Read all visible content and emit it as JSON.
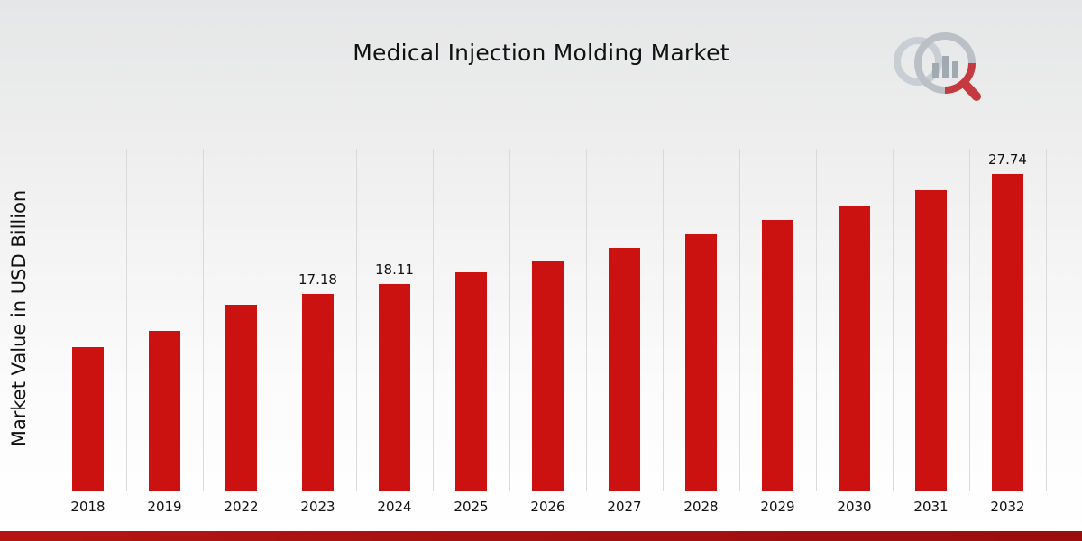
{
  "chart_data": {
    "type": "bar",
    "title": "Medical Injection Molding Market",
    "xlabel": "",
    "ylabel": "Market Value in USD Billion",
    "categories": [
      "2018",
      "2019",
      "2022",
      "2023",
      "2024",
      "2025",
      "2026",
      "2027",
      "2028",
      "2029",
      "2030",
      "2031",
      "2032"
    ],
    "values": [
      12.55,
      13.95,
      16.3,
      17.18,
      18.11,
      19.1,
      20.15,
      21.25,
      22.4,
      23.65,
      24.95,
      26.3,
      27.74
    ],
    "labels": [
      "",
      "",
      "",
      "17.18",
      "18.11",
      "",
      "",
      "",
      "",
      "",
      "",
      "",
      "27.74"
    ],
    "ylim": [
      0,
      30
    ],
    "grid": "vertical",
    "legend": "none",
    "bar_color": "#cc1111"
  },
  "branding": {
    "logo_icon": "market-research-magnifier-barchart-logo",
    "logo_gray": "#b6bcc3",
    "logo_red": "#c0272d",
    "footer_accent_color": "#a31010"
  },
  "colors": {
    "grid": "#dadada",
    "axis_line": "#c9c9c9",
    "text": "#111111",
    "background_top": "#e5e6e7",
    "background_bottom": "#ffffff"
  }
}
